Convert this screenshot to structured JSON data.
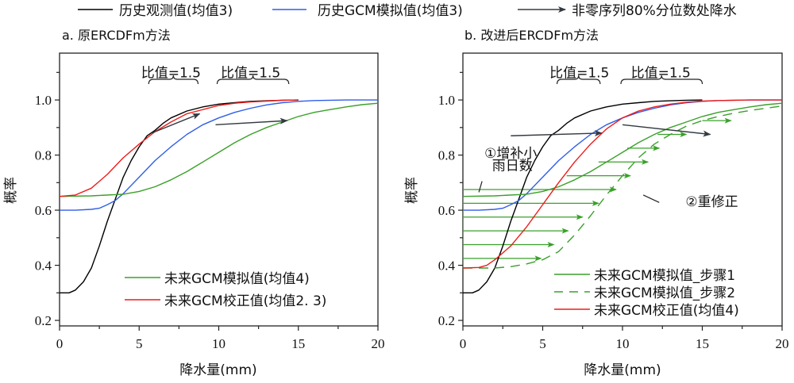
{
  "figure_legend": {
    "items": [
      {
        "label": "历史观测值(均值3)",
        "color": "#000000",
        "style": "solid"
      },
      {
        "label": "历史GCM模拟值(均值3)",
        "color": "#2f5ee8",
        "style": "solid"
      },
      {
        "label": "非零序列80%分位数处降水",
        "color": "#333a40",
        "style": "arrow"
      }
    ]
  },
  "colors": {
    "observed": "#000000",
    "gcm_hist": "#2f5ee8",
    "gcm_future": "#3aa02a",
    "corrected": "#ee1c1c",
    "arrow": "#333a40",
    "axis": "#222222"
  },
  "chart_data": [
    {
      "type": "line",
      "title": "a. 原ERCDFm方法",
      "xlabel": "降水量(mm)",
      "ylabel": "概率",
      "xlim": [
        0,
        20
      ],
      "ylim": [
        0.18,
        1.17
      ],
      "xticks": [
        0,
        5,
        10,
        15,
        20
      ],
      "xtick_labels": [
        "0",
        "5",
        "10",
        "15",
        "20"
      ],
      "yticks": [
        0.2,
        0.4,
        0.6,
        0.8,
        1.0
      ],
      "ytick_labels": [
        "0.2",
        "0.4",
        "0.6",
        "0.8",
        "1.0"
      ],
      "grid": false,
      "legend": {
        "placement": "bottom-right",
        "items": [
          {
            "label": "未来GCM模拟值(均值4)",
            "series": "future"
          },
          {
            "label": "未来GCM校正值(均值2. 3)",
            "series": "corrected"
          }
        ]
      },
      "series": [
        {
          "name": "历史观测值(均值3)",
          "key": "observed",
          "color": "#000000",
          "dash": false,
          "x": [
            0,
            0.6,
            1.0,
            1.5,
            2.0,
            2.5,
            3.0,
            3.5,
            4.0,
            4.5,
            5.0,
            5.5,
            6.0,
            6.5,
            7.0,
            8.0,
            9.0,
            10.0,
            11.0,
            12.0,
            13.0,
            14.0,
            15.0
          ],
          "y": [
            0.3,
            0.3,
            0.31,
            0.34,
            0.39,
            0.47,
            0.56,
            0.64,
            0.72,
            0.78,
            0.83,
            0.87,
            0.89,
            0.915,
            0.935,
            0.96,
            0.975,
            0.985,
            0.99,
            0.995,
            0.997,
            0.999,
            1.0
          ]
        },
        {
          "name": "历史GCM模拟值(均值3)",
          "key": "gcm_hist",
          "color": "#2f5ee8",
          "dash": false,
          "x": [
            0,
            1,
            2,
            2.5,
            3,
            3.5,
            4,
            5,
            6,
            7,
            8,
            9,
            10,
            11,
            12,
            13,
            14,
            15,
            16,
            18,
            20
          ],
          "y": [
            0.6,
            0.6,
            0.603,
            0.607,
            0.62,
            0.635,
            0.66,
            0.72,
            0.78,
            0.83,
            0.875,
            0.91,
            0.935,
            0.955,
            0.97,
            0.982,
            0.99,
            0.995,
            0.998,
            1.0,
            1.0
          ]
        },
        {
          "name": "未来GCM模拟值(均值4)",
          "key": "future",
          "color": "#3aa02a",
          "dash": false,
          "x": [
            0,
            2,
            4,
            5,
            6,
            7,
            8,
            9,
            10,
            11,
            12,
            13,
            14,
            15,
            16,
            17,
            18,
            19,
            20
          ],
          "y": [
            0.65,
            0.652,
            0.658,
            0.668,
            0.685,
            0.71,
            0.74,
            0.775,
            0.81,
            0.845,
            0.875,
            0.9,
            0.92,
            0.94,
            0.955,
            0.965,
            0.975,
            0.983,
            0.988
          ]
        },
        {
          "name": "未来GCM校正值(均值2. 3)",
          "key": "corrected",
          "color": "#ee1c1c",
          "dash": false,
          "x": [
            0,
            1,
            2,
            3,
            4,
            5,
            6,
            7,
            8,
            9,
            10,
            11,
            12,
            13,
            14,
            15
          ],
          "y": [
            0.65,
            0.655,
            0.68,
            0.73,
            0.79,
            0.84,
            0.885,
            0.92,
            0.95,
            0.965,
            0.98,
            0.988,
            0.993,
            0.996,
            0.999,
            1.0
          ]
        }
      ],
      "arrows": [
        {
          "from": [
            5.8,
            0.88
          ],
          "to": [
            8.8,
            0.95
          ]
        },
        {
          "from": [
            9.8,
            0.91
          ],
          "to": [
            14.3,
            0.925
          ]
        }
      ],
      "annotations": [
        {
          "text": "比值=1.5",
          "brace_x": [
            5.6,
            8.7
          ],
          "text_x": 7.0,
          "y": 1.1
        },
        {
          "text": "比值=1.5",
          "brace_x": [
            9.9,
            14.4
          ],
          "text_x": 12.0,
          "y": 1.1
        }
      ]
    },
    {
      "type": "line",
      "title": "b. 改进后ERCDFm方法",
      "xlabel": "降水量(mm)",
      "ylabel": "概率",
      "xlim": [
        0,
        20
      ],
      "ylim": [
        0.18,
        1.17
      ],
      "xticks": [
        0,
        5,
        10,
        15,
        20
      ],
      "xtick_labels": [
        "0",
        "5",
        "10",
        "15",
        "20"
      ],
      "yticks": [
        0.2,
        0.4,
        0.6,
        0.8,
        1.0
      ],
      "ytick_labels": [
        "0.2",
        "0.4",
        "0.6",
        "0.8",
        "1.0"
      ],
      "grid": false,
      "legend": {
        "placement": "bottom-right",
        "items": [
          {
            "label": "未来GCM模拟值_步骤1",
            "series": "step1"
          },
          {
            "label": "未来GCM模拟值_步骤2",
            "series": "step2"
          },
          {
            "label": "未来GCM校正值(均值4)",
            "series": "corrected"
          }
        ]
      },
      "series": [
        {
          "name": "历史观测值(均值3)",
          "key": "observed",
          "color": "#000000",
          "dash": false,
          "x": [
            0,
            0.6,
            1.0,
            1.5,
            2.0,
            2.5,
            3.0,
            3.5,
            4.0,
            4.5,
            5.0,
            5.5,
            6.0,
            6.5,
            7.0,
            8.0,
            9.0,
            10.0,
            11.0,
            12.0,
            13.0,
            14.0,
            15.0
          ],
          "y": [
            0.3,
            0.3,
            0.31,
            0.34,
            0.39,
            0.47,
            0.56,
            0.64,
            0.72,
            0.78,
            0.83,
            0.87,
            0.89,
            0.915,
            0.935,
            0.96,
            0.975,
            0.985,
            0.99,
            0.995,
            0.997,
            0.999,
            1.0
          ]
        },
        {
          "name": "历史GCM模拟值(均值3)",
          "key": "gcm_hist",
          "color": "#2f5ee8",
          "dash": false,
          "x": [
            0,
            1,
            2,
            2.5,
            3,
            3.5,
            4,
            5,
            6,
            7,
            8,
            9,
            10,
            11,
            12,
            13,
            14,
            15,
            16,
            18,
            20
          ],
          "y": [
            0.6,
            0.6,
            0.603,
            0.607,
            0.62,
            0.635,
            0.66,
            0.72,
            0.78,
            0.83,
            0.875,
            0.91,
            0.935,
            0.955,
            0.97,
            0.982,
            0.99,
            0.995,
            0.998,
            1.0,
            1.0
          ]
        },
        {
          "name": "未来GCM模拟值_步骤1",
          "key": "step1",
          "color": "#3aa02a",
          "dash": false,
          "x": [
            0,
            0,
            2,
            4,
            5,
            6,
            7,
            8,
            9,
            10,
            11,
            12,
            13,
            14,
            15,
            16,
            17,
            18,
            19,
            20
          ],
          "y": [
            0.39,
            0.65,
            0.652,
            0.658,
            0.668,
            0.685,
            0.71,
            0.74,
            0.775,
            0.81,
            0.845,
            0.875,
            0.9,
            0.92,
            0.94,
            0.955,
            0.965,
            0.975,
            0.983,
            0.988
          ]
        },
        {
          "name": "未来GCM模拟值_步骤2",
          "key": "step2",
          "color": "#3aa02a",
          "dash": true,
          "x": [
            0,
            2,
            3,
            4,
            5,
            6,
            7,
            8,
            9,
            10,
            11,
            12,
            13,
            14,
            15,
            16,
            17,
            18,
            19,
            20
          ],
          "y": [
            0.39,
            0.39,
            0.395,
            0.405,
            0.42,
            0.45,
            0.51,
            0.58,
            0.655,
            0.725,
            0.79,
            0.84,
            0.875,
            0.905,
            0.925,
            0.94,
            0.952,
            0.962,
            0.97,
            0.978
          ]
        },
        {
          "name": "未来GCM校正值(均值4)",
          "key": "corrected",
          "color": "#ee1c1c",
          "dash": false,
          "x": [
            0,
            1,
            1.5,
            2,
            3,
            4,
            5,
            6,
            7,
            8,
            9,
            10,
            11,
            12,
            13,
            14,
            15,
            16,
            18,
            20
          ],
          "y": [
            0.39,
            0.392,
            0.4,
            0.42,
            0.47,
            0.54,
            0.62,
            0.7,
            0.775,
            0.84,
            0.895,
            0.935,
            0.96,
            0.975,
            0.985,
            0.992,
            0.996,
            0.998,
            1.0,
            1.0
          ]
        }
      ],
      "horizontal_arrows": [
        {
          "y": 0.425,
          "x_end": 4.9
        },
        {
          "y": 0.475,
          "x_end": 5.7
        },
        {
          "y": 0.525,
          "x_end": 6.6
        },
        {
          "y": 0.575,
          "x_end": 7.5
        },
        {
          "y": 0.625,
          "x_end": 8.5
        },
        {
          "y": 0.675,
          "x_end": 9.6
        },
        {
          "y": 0.725,
          "x_end": 10.5,
          "x_start": 6.5
        },
        {
          "y": 0.775,
          "x_end": 11.6,
          "x_start": 8.5
        },
        {
          "y": 0.825,
          "x_end": 12.3,
          "x_start": 10.3
        },
        {
          "y": 0.875,
          "x_end": 14.0,
          "x_start": 12.2
        },
        {
          "y": 0.925,
          "x_end": 16.8,
          "x_start": 15.0
        }
      ],
      "arrows": [
        {
          "from": [
            3.0,
            0.87
          ],
          "to": [
            8.7,
            0.88
          ]
        },
        {
          "from": [
            10.0,
            0.91
          ],
          "to": [
            15.5,
            0.875
          ]
        }
      ],
      "annotations": [
        {
          "text": "比值=1.5",
          "brace_x": [
            5.9,
            8.6
          ],
          "text_x": 7.3,
          "y": 1.1
        },
        {
          "text": "比值=1.5",
          "brace_x": [
            9.9,
            15.0
          ],
          "text_x": 12.4,
          "y": 1.1
        },
        {
          "text": "①增补小",
          "x": 3.0,
          "y": 0.79
        },
        {
          "text": "雨日数",
          "x": 3.1,
          "y": 0.745
        },
        {
          "text": "②重修正",
          "x": 15.6,
          "y": 0.615
        }
      ]
    }
  ]
}
